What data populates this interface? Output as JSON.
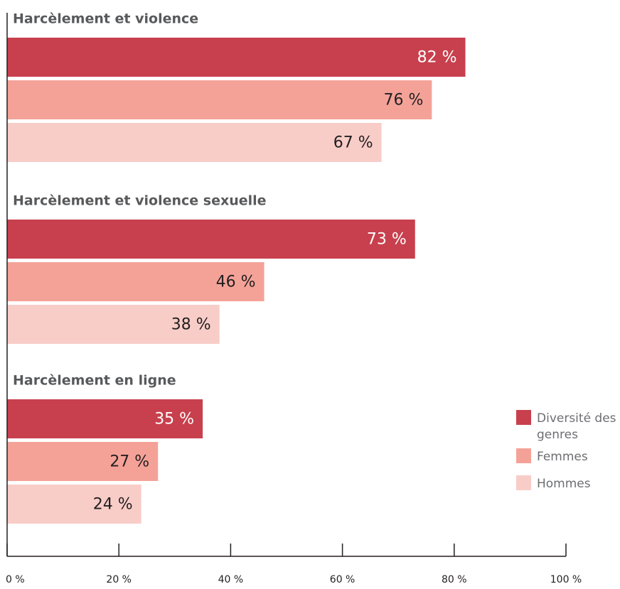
{
  "chart_data": {
    "type": "bar",
    "orientation": "horizontal",
    "groups": [
      "Harcèlement et violence",
      "Harcèlement et violence sexuelle",
      "Harcèlement en ligne"
    ],
    "series": [
      {
        "name": "Diversité des genres",
        "values": [
          82,
          73,
          35
        ],
        "labels": [
          "82 %",
          "73 %",
          "35 %"
        ],
        "color": "#c8404d",
        "label_color": "#ffffff"
      },
      {
        "name": "Femmes",
        "values": [
          76,
          46,
          27
        ],
        "labels": [
          "76 %",
          "46 %",
          "27 %"
        ],
        "color": "#f4a298",
        "label_color": "#231f20"
      },
      {
        "name": "Hommes",
        "values": [
          67,
          38,
          24
        ],
        "labels": [
          "67 %",
          "38 %",
          "24 %"
        ],
        "color": "#f8cdc8",
        "label_color": "#231f20"
      }
    ],
    "xlim": [
      0,
      100
    ],
    "ticks": [
      0,
      20,
      40,
      60,
      80,
      100
    ],
    "tick_labels": [
      "0 %",
      "20 %",
      "40 %",
      "60 %",
      "80 %",
      "100 %"
    ],
    "legend": {
      "position": "bottom-right",
      "items": [
        {
          "label_lines": [
            "Diversité des",
            "genres"
          ],
          "color": "#c8404d"
        },
        {
          "label_lines": [
            "Femmes"
          ],
          "color": "#f4a298"
        },
        {
          "label_lines": [
            "Hommes"
          ],
          "color": "#f8cdc8"
        }
      ]
    },
    "grid": false
  }
}
